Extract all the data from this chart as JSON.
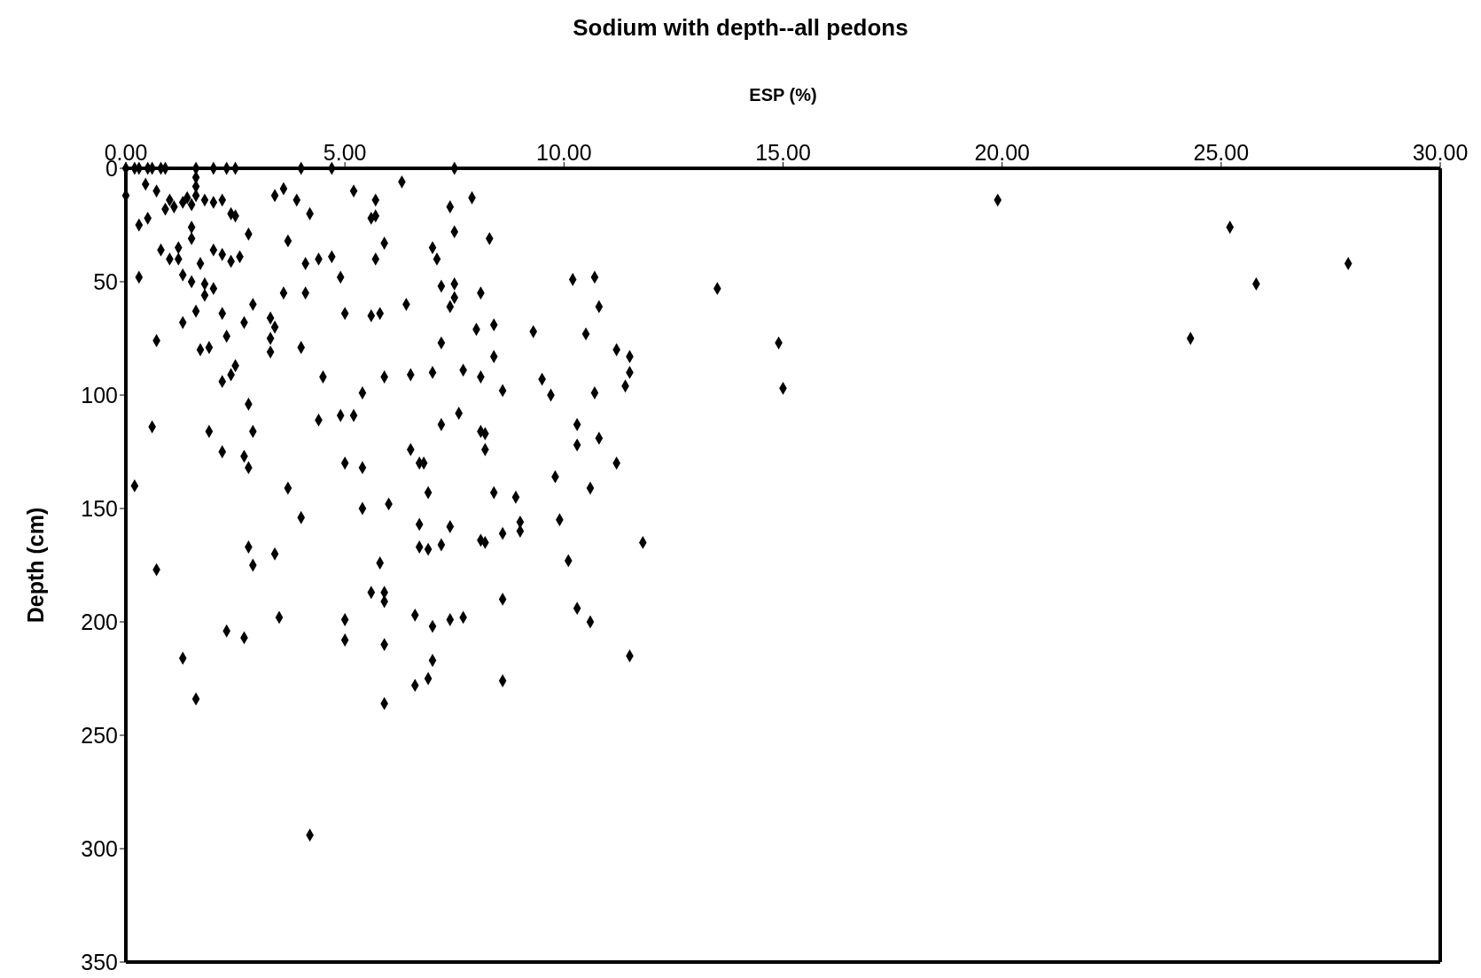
{
  "chart_data": {
    "type": "scatter",
    "title": "Sodium with depth--all pedons",
    "xlabel": "ESP (%)",
    "ylabel": "Depth (cm)",
    "xlim": [
      0,
      30
    ],
    "xticks": [
      {
        "value": 0,
        "label": "0.00"
      },
      {
        "value": 5,
        "label": "5.00"
      },
      {
        "value": 10,
        "label": "10.00"
      },
      {
        "value": 15,
        "label": "15.00"
      },
      {
        "value": 20,
        "label": "20.00"
      },
      {
        "value": 25,
        "label": "25.00"
      },
      {
        "value": 30,
        "label": "30.00"
      }
    ],
    "ylim": [
      350,
      0
    ],
    "yticks": [
      0,
      50,
      100,
      150,
      200,
      250,
      300,
      350
    ],
    "grid": false,
    "legend": false,
    "marker": "diamond",
    "series": [
      {
        "color": "#000000",
        "x": [
          0.0,
          0.2,
          0.3,
          0.5,
          0.6,
          0.8,
          0.9,
          1.6,
          2.0,
          2.3,
          2.5,
          4.0,
          4.7,
          7.5,
          0.0,
          0.3,
          0.5,
          0.45,
          0.7,
          0.9,
          1.0,
          1.1,
          1.3,
          1.4,
          1.5,
          1.6,
          1.6,
          1.6,
          1.5,
          1.5,
          1.8,
          2.0,
          2.2,
          2.4,
          2.5,
          0.3,
          0.8,
          1.0,
          1.2,
          1.2,
          1.3,
          1.5,
          1.7,
          1.8,
          1.8,
          2.0,
          2.2,
          2.4,
          2.6,
          2.0,
          2.8,
          1.3,
          1.6,
          2.2,
          2.9,
          2.7,
          2.3,
          1.7,
          1.9,
          0.7,
          2.5,
          2.4,
          2.2,
          3.3,
          3.4,
          3.3,
          3.3,
          2.8,
          2.9,
          0.6,
          1.9,
          2.2,
          2.7,
          2.8,
          0.2,
          0.7,
          2.8,
          2.9,
          2.3,
          2.7,
          1.3,
          1.6,
          3.4,
          3.6,
          3.9,
          3.7,
          4.2,
          4.1,
          3.6,
          4.1,
          4.0,
          4.4,
          4.7,
          4.9,
          5.2,
          5.6,
          5.7,
          5.7,
          5.9,
          5.7,
          6.3,
          7.0,
          7.1,
          7.4,
          7.5,
          7.9,
          8.3,
          5.0,
          5.6,
          5.8,
          6.4,
          7.2,
          7.5,
          7.4,
          7.5,
          8.1,
          4.5,
          5.4,
          5.9,
          6.5,
          7.0,
          7.2,
          7.7,
          8.0,
          8.1,
          8.4,
          8.4,
          8.6,
          9.3,
          4.4,
          4.9,
          5.2,
          5.0,
          5.4,
          5.4,
          6.0,
          6.5,
          6.7,
          6.8,
          6.9,
          7.2,
          7.6,
          8.1,
          8.2,
          8.2,
          8.4,
          8.6,
          8.1,
          8.2,
          7.4,
          7.2,
          6.7,
          6.7,
          6.9,
          8.9,
          9.0,
          9.0,
          3.7,
          4.0,
          3.4,
          3.5,
          5.8,
          5.6,
          5.9,
          5.9,
          5.0,
          5.0,
          5.9,
          6.6,
          7.0,
          7.4,
          7.7,
          7.0,
          6.9,
          6.6,
          5.9,
          8.6,
          8.6,
          4.2,
          9.5,
          9.7,
          10.2,
          10.7,
          10.5,
          10.8,
          11.2,
          11.5,
          11.5,
          11.4,
          10.7,
          10.3,
          10.3,
          10.8,
          11.2,
          9.8,
          10.6,
          9.9,
          10.1,
          11.8,
          10.3,
          10.6,
          11.5,
          13.5,
          14.9,
          15.0,
          19.9,
          25.2,
          25.8,
          27.9,
          24.3
        ],
        "values": [
          0,
          0,
          0,
          0,
          0,
          0,
          0,
          0,
          0,
          0,
          0,
          0,
          0,
          0,
          12,
          25,
          22,
          7,
          10,
          18,
          14,
          17,
          15,
          13,
          16,
          12,
          8,
          4,
          26,
          31,
          14,
          15,
          14,
          20,
          21,
          48,
          36,
          40,
          35,
          40,
          47,
          50,
          42,
          51,
          56,
          36,
          38,
          41,
          39,
          53,
          29,
          68,
          63,
          64,
          60,
          68,
          74,
          80,
          79,
          76,
          87,
          91,
          94,
          66,
          70,
          75,
          81,
          104,
          116,
          114,
          116,
          125,
          127,
          132,
          140,
          177,
          167,
          175,
          204,
          207,
          216,
          234,
          12,
          9,
          14,
          32,
          20,
          42,
          55,
          55,
          79,
          40,
          39,
          48,
          10,
          22,
          14,
          21,
          33,
          40,
          6,
          35,
          40,
          17,
          28,
          13,
          31,
          64,
          65,
          64,
          60,
          52,
          57,
          61,
          51,
          55,
          92,
          99,
          92,
          91,
          90,
          77,
          89,
          71,
          92,
          69,
          83,
          98,
          72,
          111,
          109,
          109,
          130,
          132,
          150,
          148,
          124,
          130,
          130,
          143,
          113,
          108,
          116,
          117,
          124,
          143,
          161,
          164,
          165,
          158,
          166,
          157,
          167,
          168,
          145,
          156,
          160,
          141,
          154,
          170,
          198,
          174,
          187,
          187,
          191,
          199,
          208,
          210,
          197,
          202,
          199,
          198,
          217,
          225,
          228,
          236,
          190,
          226,
          294,
          93,
          100,
          49,
          48,
          73,
          61,
          80,
          83,
          90,
          96,
          99,
          113,
          122,
          119,
          130,
          136,
          141,
          155,
          173,
          165,
          194,
          200,
          215,
          53,
          77,
          97,
          14,
          26,
          51,
          42,
          75
        ]
      }
    ]
  }
}
